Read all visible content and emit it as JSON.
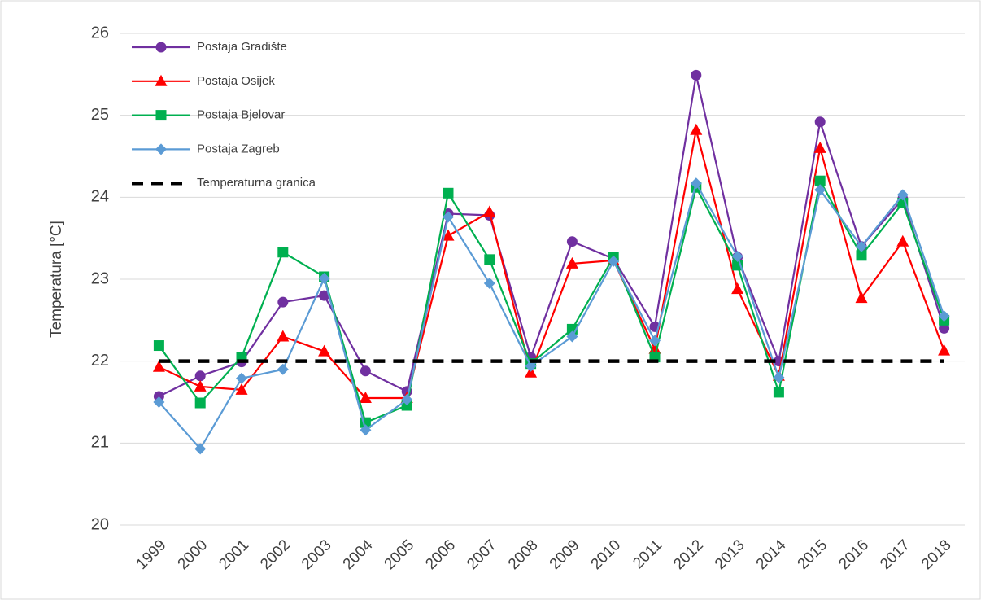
{
  "chart_data": {
    "type": "line",
    "y_label": "Temperatura [°C]",
    "categories": [
      "1999",
      "2000",
      "2001",
      "2002",
      "2003",
      "2004",
      "2005",
      "2006",
      "2007",
      "2008",
      "2009",
      "2010",
      "2011",
      "2012",
      "2013",
      "2014",
      "2015",
      "2016",
      "2017",
      "2018"
    ],
    "ylim": [
      20,
      26
    ],
    "yticks": [
      20,
      21,
      22,
      23,
      24,
      25,
      26
    ],
    "grid": true,
    "legend": "top-left",
    "series": [
      {
        "name": "Postaja Gradište",
        "color": "#7030a0",
        "marker": "circle",
        "values": [
          21.57,
          21.82,
          21.99,
          22.72,
          22.8,
          21.88,
          21.63,
          23.8,
          23.78,
          22.05,
          23.46,
          23.25,
          22.42,
          25.49,
          23.27,
          22.0,
          24.92,
          23.4,
          23.98,
          22.4
        ]
      },
      {
        "name": "Postaja Osijek",
        "color": "#ff0000",
        "marker": "triangle",
        "values": [
          21.93,
          21.69,
          21.65,
          22.3,
          22.12,
          21.55,
          21.55,
          23.53,
          23.82,
          21.86,
          23.19,
          23.23,
          22.15,
          24.82,
          22.88,
          21.82,
          24.6,
          22.77,
          23.46,
          22.13
        ]
      },
      {
        "name": "Postaja Bjelovar",
        "color": "#00b050",
        "marker": "square",
        "values": [
          22.19,
          21.49,
          22.05,
          23.33,
          23.03,
          21.25,
          21.46,
          24.05,
          23.24,
          21.97,
          22.39,
          23.27,
          22.05,
          24.12,
          23.17,
          21.62,
          24.2,
          23.29,
          23.93,
          22.5
        ]
      },
      {
        "name": "Postaja Zagreb",
        "color": "#5b9bd5",
        "marker": "diamond",
        "values": [
          21.5,
          20.93,
          21.79,
          21.9,
          23.01,
          21.16,
          21.53,
          23.76,
          22.95,
          21.94,
          22.3,
          23.22,
          22.25,
          24.17,
          23.28,
          21.8,
          24.09,
          23.4,
          24.03,
          22.55
        ]
      },
      {
        "name": "Temperaturna granica",
        "color": "#000000",
        "marker": "none",
        "dashed": true,
        "values": [
          22,
          22,
          22,
          22,
          22,
          22,
          22,
          22,
          22,
          22,
          22,
          22,
          22,
          22,
          22,
          22,
          22,
          22,
          22,
          22
        ]
      }
    ]
  }
}
